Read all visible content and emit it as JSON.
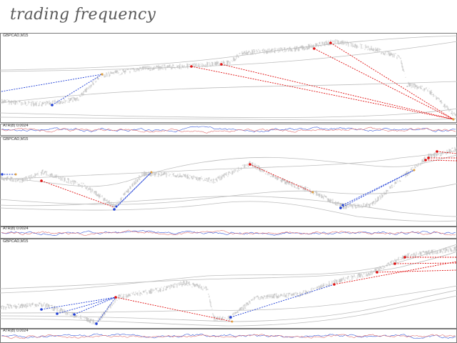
{
  "header": {
    "title": "trading frequency"
  },
  "panels": [
    {
      "label": "GBPCAD,M15",
      "indicator_label": "ATR(8) 0.0024"
    },
    {
      "label": "GBPCAD,M15",
      "indicator_label": "ATR(8) 0.0024"
    },
    {
      "label": "GBPCAD,M15",
      "indicator_label": "ATR(8) 0.0024"
    }
  ],
  "colors": {
    "price": "#b4b4b4",
    "buy": "#1f3fd6",
    "sell": "#e01010",
    "frame": "#7a7a7a",
    "atr_a": "#3b5bd9",
    "atr_b": "#e07070"
  },
  "icons": {
    "trade_marker": "dot-marker"
  }
}
